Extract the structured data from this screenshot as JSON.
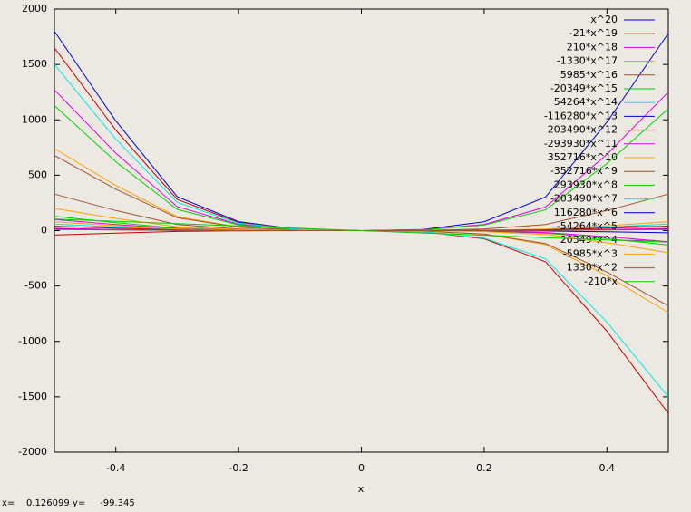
{
  "chart_data": {
    "type": "line",
    "x_label": "x",
    "x": [
      -0.5,
      -0.4,
      -0.3,
      -0.2,
      -0.1,
      0,
      0.1,
      0.2,
      0.3,
      0.4,
      0.5
    ],
    "xlim": [
      -0.5,
      0.5
    ],
    "xticks": [
      -0.4,
      -0.2,
      0,
      0.2,
      0.4
    ],
    "ylim": [
      -2000,
      2000
    ],
    "yticks": [
      -2000,
      -1500,
      -1000,
      -500,
      0,
      500,
      1000,
      1500,
      2000
    ],
    "grid": false,
    "legend": "top-right",
    "series": [
      {
        "name": "x^20",
        "color": "#0000c8",
        "values": [
          1800,
          990,
          306,
          81,
          11,
          0,
          11,
          80,
          303,
          979,
          1780
        ]
      },
      {
        "name": "-21*x^19",
        "color": "#c80000",
        "values": [
          1650,
          908,
          281,
          74,
          10,
          0,
          -10,
          -74,
          -281,
          -908,
          -1650
        ]
      },
      {
        "name": "210*x^18",
        "color": "#e000e0",
        "values": [
          1270,
          699,
          216,
          57,
          8,
          0,
          8,
          56,
          213,
          688,
          1250
        ]
      },
      {
        "name": "-1330*x^17",
        "color": "#ffa000",
        "values": [
          740,
          407,
          126,
          33,
          4,
          0,
          -4,
          -33,
          -126,
          -407,
          -740
        ]
      },
      {
        "name": "5985*x^16",
        "color": "#a0522d",
        "values": [
          330,
          182,
          56,
          15,
          2,
          0,
          2,
          15,
          56,
          182,
          330
        ]
      },
      {
        "name": "-20349*x^15",
        "color": "#00d000",
        "values": [
          130,
          72,
          22,
          6,
          1,
          0,
          -1,
          -6,
          -22,
          -72,
          -130
        ]
      },
      {
        "name": "54264*x^14",
        "color": "#00e8e8",
        "values": [
          60,
          33,
          10,
          3,
          0,
          0,
          0,
          3,
          10,
          33,
          60
        ]
      },
      {
        "name": "-116280*x^13",
        "color": "#0000c8",
        "values": [
          20,
          11,
          3,
          1,
          0,
          0,
          0,
          -1,
          -3,
          -11,
          -20
        ]
      },
      {
        "name": "203490*x^12",
        "color": "#c80000",
        "values": [
          40,
          22,
          7,
          2,
          0,
          0,
          0,
          2,
          7,
          22,
          40
        ]
      },
      {
        "name": "-293930*x^11",
        "color": "#e000e0",
        "values": [
          100,
          55,
          17,
          5,
          1,
          0,
          -1,
          -5,
          -17,
          -55,
          -100
        ]
      },
      {
        "name": "352716*x^10",
        "color": "#ffa000",
        "values": [
          80,
          44,
          14,
          4,
          0,
          0,
          0,
          4,
          14,
          44,
          80
        ]
      },
      {
        "name": "-352716*x^9",
        "color": "#a0522d",
        "values": [
          680,
          374,
          116,
          31,
          4,
          0,
          -4,
          -31,
          -116,
          -374,
          -680
        ]
      },
      {
        "name": "293930*x^8",
        "color": "#00d000",
        "values": [
          1130,
          622,
          192,
          51,
          7,
          0,
          7,
          50,
          187,
          605,
          1100
        ]
      },
      {
        "name": "-203490*x^7",
        "color": "#00e8e8",
        "values": [
          1500,
          825,
          255,
          68,
          9,
          0,
          -9,
          -68,
          -255,
          -825,
          -1500
        ]
      },
      {
        "name": "116280*x^6",
        "color": "#0000c8",
        "values": [
          15,
          8,
          3,
          1,
          0,
          0,
          0,
          1,
          3,
          8,
          15
        ]
      },
      {
        "name": "-54264*x^5",
        "color": "#c80000",
        "values": [
          -40,
          -22,
          -7,
          -2,
          0,
          0,
          0,
          2,
          7,
          22,
          40
        ]
      },
      {
        "name": "20349*x^4",
        "color": "#e000e0",
        "values": [
          20,
          11,
          3,
          1,
          0,
          0,
          0,
          1,
          3,
          11,
          20
        ]
      },
      {
        "name": "-5985*x^3",
        "color": "#ffa000",
        "values": [
          200,
          110,
          34,
          9,
          1,
          0,
          -1,
          -9,
          -34,
          -110,
          -200
        ]
      },
      {
        "name": "1330*x^2",
        "color": "#a0522d",
        "values": [
          10,
          6,
          2,
          0,
          0,
          0,
          0,
          0,
          2,
          6,
          10
        ]
      },
      {
        "name": "-210*x",
        "color": "#00d000",
        "values": [
          105,
          84,
          63,
          42,
          21,
          0,
          -21,
          -42,
          -63,
          -84,
          -105
        ]
      }
    ]
  },
  "status": "x=    0.126099 y=     -99.345"
}
